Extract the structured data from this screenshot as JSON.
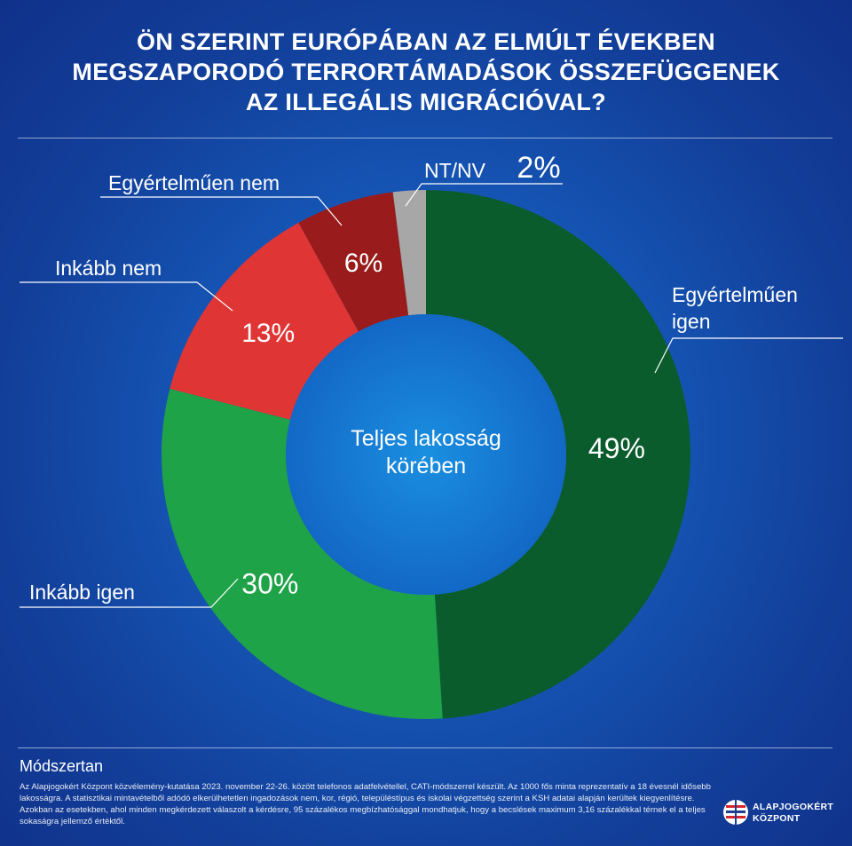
{
  "title_lines": [
    "ÖN SZERINT EURÓPÁBAN AZ ELMÚLT ÉVEKBEN",
    "MEGSZAPORODÓ TERRORTÁMADÁSOK ÖSSZEFÜGGENEK",
    "AZ ILLEGÁLIS MIGRÁCIÓVAL?"
  ],
  "chart_data": {
    "type": "pie",
    "subtype": "donut",
    "center_label": [
      "Teljes lakosság",
      "körében"
    ],
    "categories": [
      "Egyértelműen igen",
      "Inkább igen",
      "Inkább nem",
      "Egyértelműen nem",
      "NT/NV"
    ],
    "values": [
      49,
      30,
      13,
      6,
      2
    ],
    "value_labels": [
      "49%",
      "30%",
      "13%",
      "6%",
      "2%"
    ],
    "legend_labels": [
      [
        "Egyértelműen",
        "igen"
      ],
      [
        "Inkább igen"
      ],
      [
        "Inkább nem"
      ],
      [
        "Egyértelműen nem"
      ],
      [
        "NT/NV"
      ]
    ],
    "colors": [
      "#0b5c2c",
      "#1ea348",
      "#e03535",
      "#991b1b",
      "#a7a7a7"
    ]
  },
  "methodology": {
    "heading": "Módszertan",
    "text": "Az Alapjogokért Központ közvélemény-kutatása 2023. november 22-26. között telefonos adatfelvétellel, CATI-módszerrel készült. Az 1000 fős minta reprezentatív a 18 évesnél idősebb lakosságra. A statisztikai mintavételből adódó elkerülhetetlen ingadozások nem, kor, régió, településtípus és iskolai végzettség szerint a KSH adatai alapján kerültek kiegyenlítésre. Azokban az esetekben, ahol minden megkérdezett válaszolt a kérdésre, 95 százalékos megbízhatósággal mondhatjuk, hogy a becslések maximum 3,16 százalékkal térnek el a teljes sokaságra jellemző értéktől."
  },
  "logo": {
    "line1": "ALAPJOGOKÉRT",
    "line2": "KÖZPONT"
  }
}
